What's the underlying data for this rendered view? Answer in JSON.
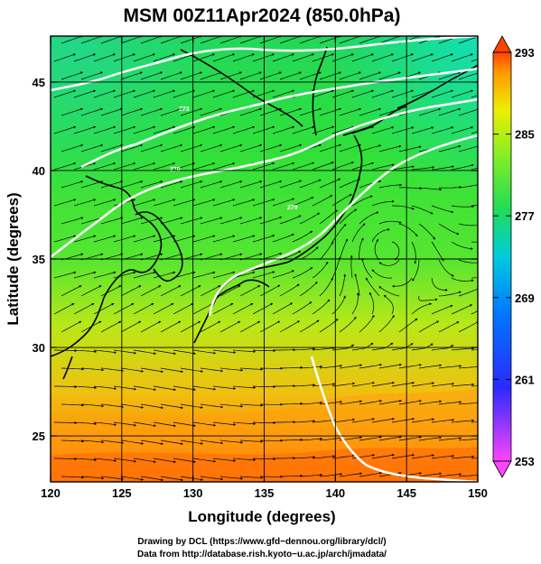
{
  "title": "MSM 00Z11Apr2024 (850.0hPa)",
  "x_axis": {
    "label": "Longitude (degrees)",
    "ticks": [
      "120",
      "125",
      "130",
      "135",
      "140",
      "145",
      "150"
    ]
  },
  "y_axis": {
    "label": "Latitude  (degrees)",
    "ticks": [
      "25",
      "30",
      "35",
      "40",
      "45"
    ]
  },
  "colorbar": {
    "ticks": [
      "293",
      "285",
      "277",
      "269",
      "261",
      "253"
    ],
    "min": 253,
    "max": 293,
    "colors": [
      "#ff44ff",
      "#0044ff",
      "#00ccff",
      "#00ff88",
      "#33ee33",
      "#ddee00",
      "#ffaa00",
      "#ff5500"
    ]
  },
  "contour_labels": [
    "273",
    "276",
    "279"
  ],
  "credits": {
    "line1": "Drawing by DCL (https://www.gfd−dennou.org/library/dcl/)",
    "line2": "Data from http://database.rish.kyoto−u.ac.jp/arch/jmadata/"
  },
  "chart_data": {
    "type": "heatmap",
    "title": "MSM 00Z11Apr2024 (850.0hPa)",
    "xlabel": "Longitude (degrees)",
    "ylabel": "Latitude  (degrees)",
    "xlim": [
      120,
      150
    ],
    "ylim": [
      22.4,
      47.6
    ],
    "color_range": [
      253,
      293
    ],
    "fields": [
      "temperature (shaded)",
      "wind (streamlines)"
    ]
  }
}
